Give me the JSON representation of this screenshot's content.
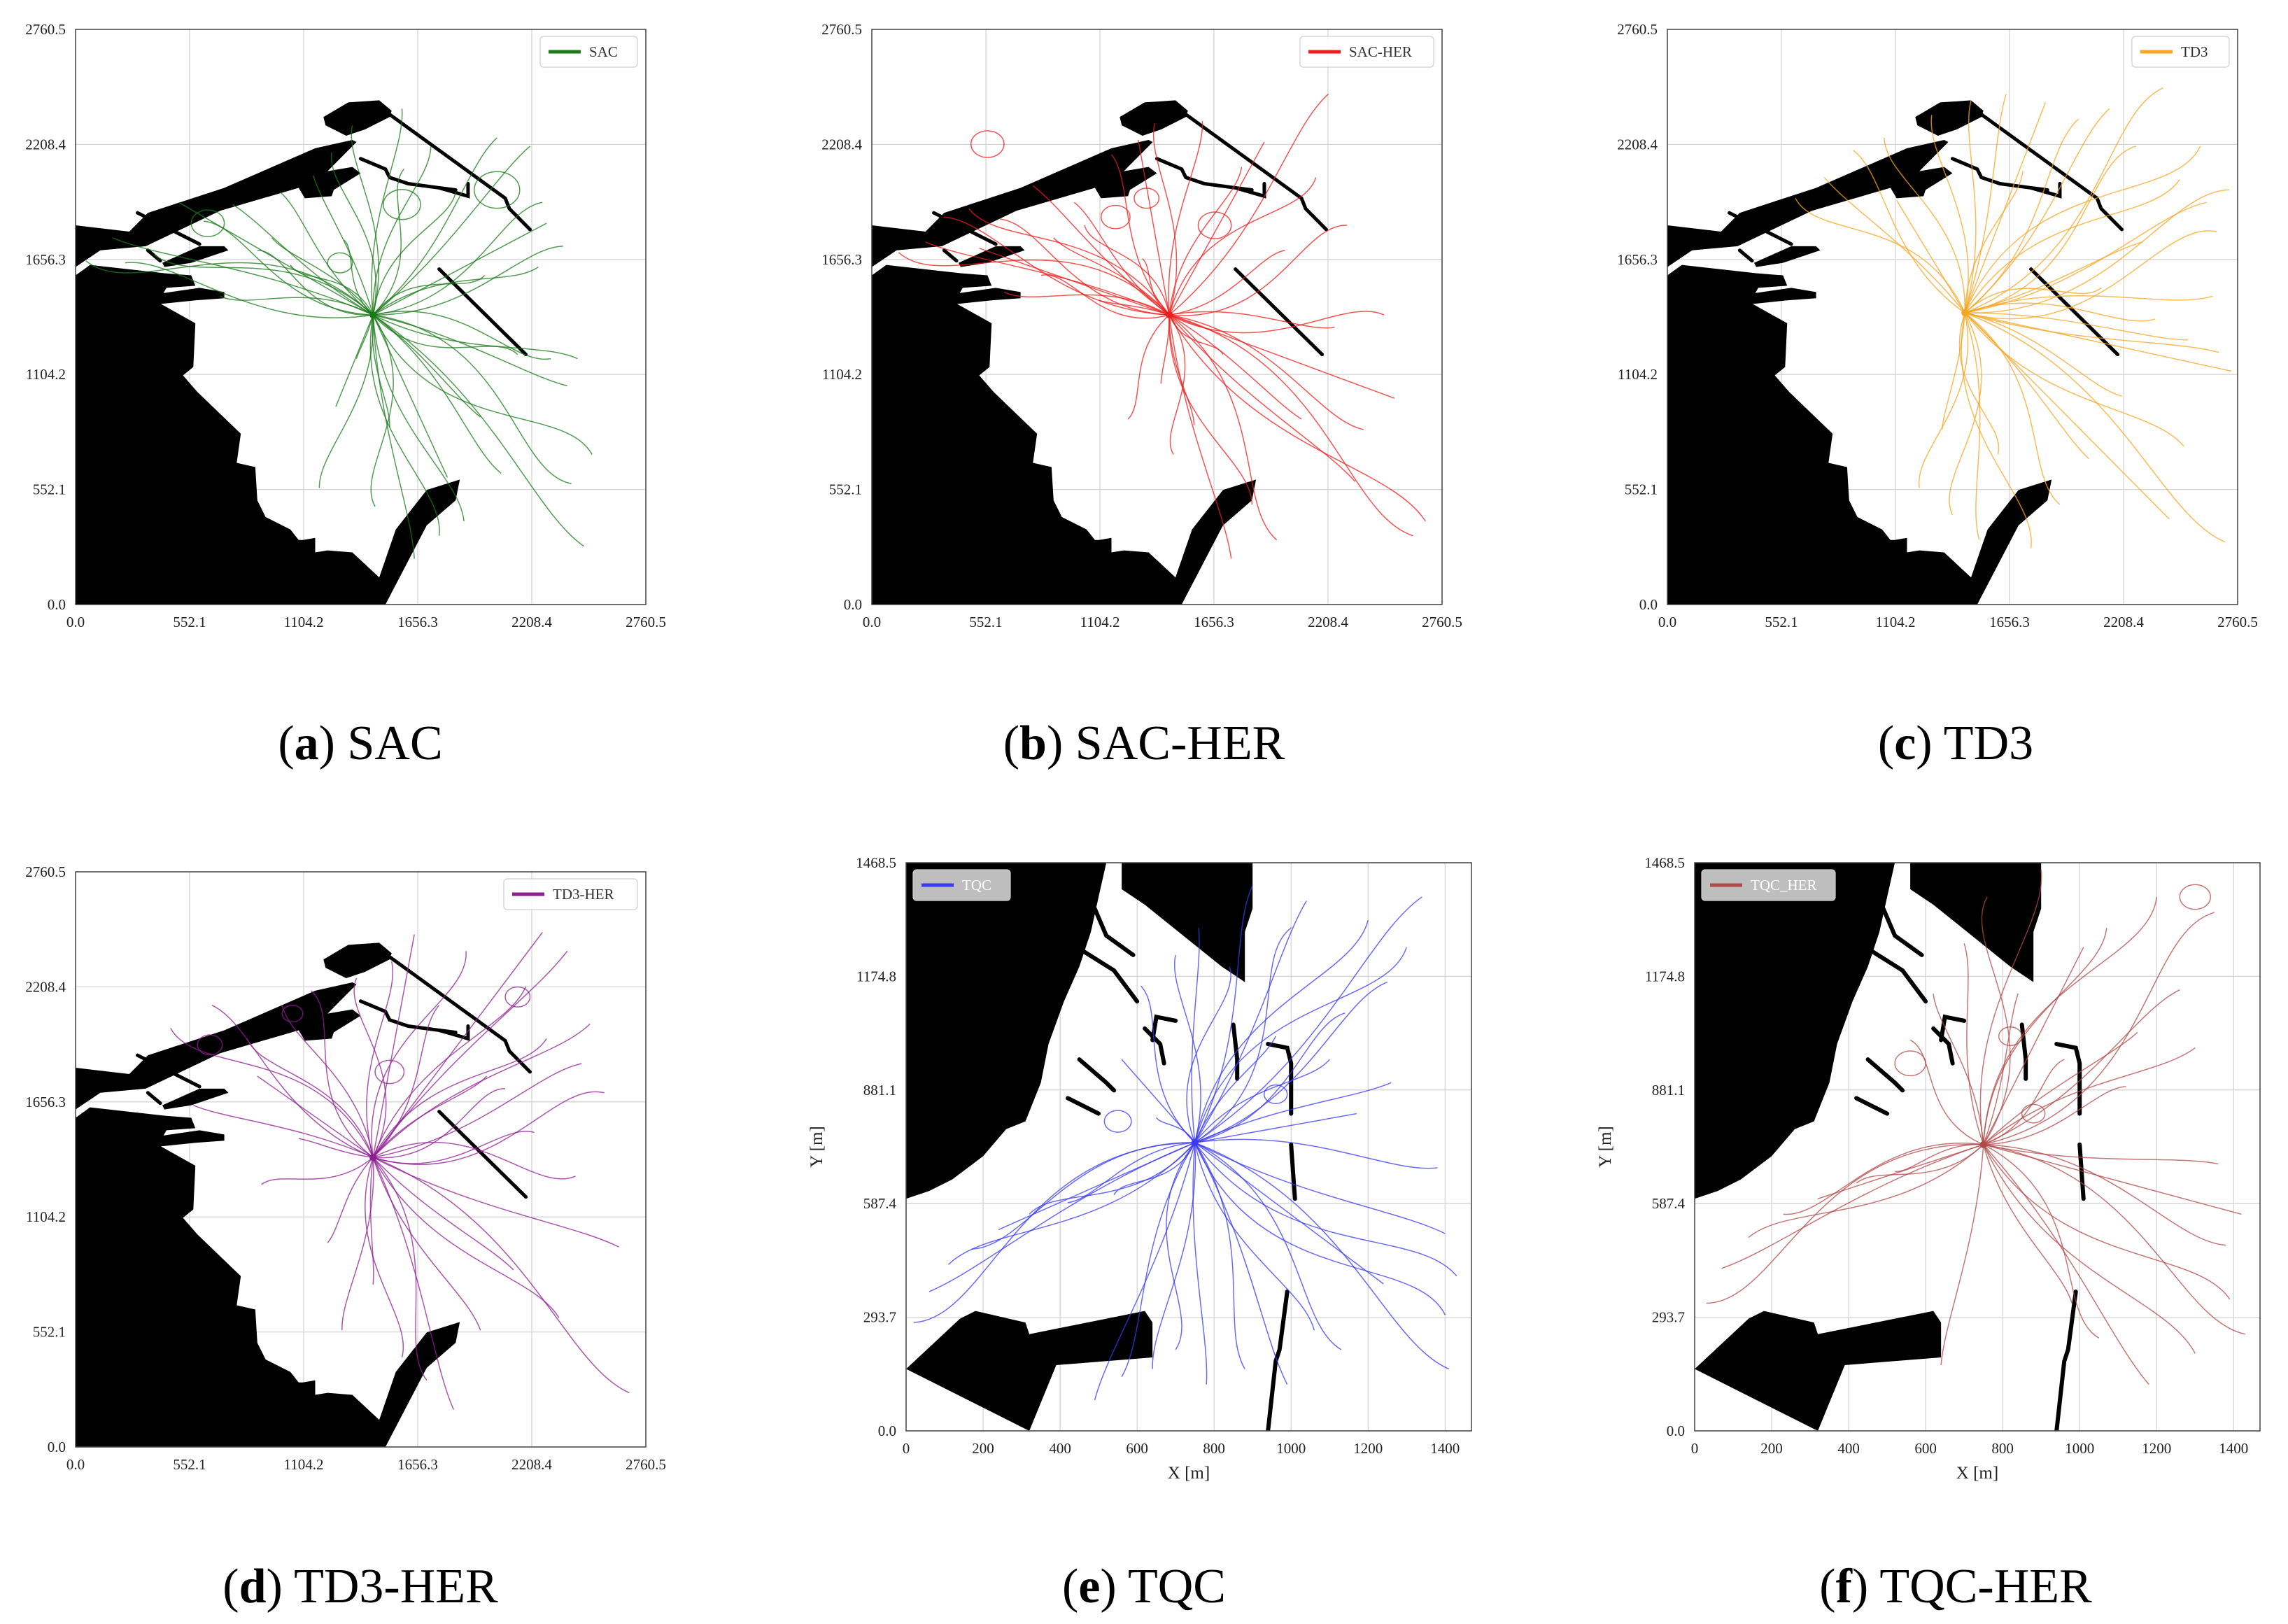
{
  "chart_data": [
    {
      "type": "line",
      "panel_label": "a",
      "caption": "SAC",
      "legend": "SAC",
      "legend_placement": "top-right",
      "legend_style": "light",
      "color": "#1a7a1a",
      "map": "A",
      "xlim": [
        0,
        2760.5
      ],
      "ylim": [
        0,
        2760.5
      ],
      "xticks": [
        0.0,
        552.1,
        1104.2,
        1656.3,
        2208.4,
        2760.5
      ],
      "yticks": [
        0.0,
        552.1,
        1104.2,
        1656.3,
        2208.4,
        2760.5
      ],
      "xlabel": "",
      "ylabel": "",
      "grid": true,
      "origin": [
        1440,
        1390
      ],
      "endpoints": [
        [
          50,
          1650
        ],
        [
          180,
          1760
        ],
        [
          240,
          1640
        ],
        [
          380,
          1680
        ],
        [
          500,
          1930
        ],
        [
          620,
          1840
        ],
        [
          700,
          1480
        ],
        [
          760,
          1920
        ],
        [
          880,
          1700
        ],
        [
          950,
          1760
        ],
        [
          990,
          1980
        ],
        [
          1040,
          1630
        ],
        [
          1150,
          2060
        ],
        [
          1180,
          560
        ],
        [
          1240,
          2170
        ],
        [
          1260,
          950
        ],
        [
          1300,
          1750
        ],
        [
          1340,
          2300
        ],
        [
          1360,
          1180
        ],
        [
          1450,
          470
        ],
        [
          1520,
          850
        ],
        [
          1580,
          2380
        ],
        [
          1590,
          2090
        ],
        [
          1640,
          220
        ],
        [
          1720,
          2200
        ],
        [
          1760,
          330
        ],
        [
          1800,
          610
        ],
        [
          1840,
          1980
        ],
        [
          1880,
          400
        ],
        [
          1960,
          900
        ],
        [
          1980,
          1580
        ],
        [
          2040,
          2240
        ],
        [
          2060,
          630
        ],
        [
          2140,
          1200
        ],
        [
          2200,
          2200
        ],
        [
          2240,
          1620
        ],
        [
          2260,
          1930
        ],
        [
          2280,
          1830
        ],
        [
          2300,
          1180
        ],
        [
          2360,
          1720
        ],
        [
          2380,
          1050
        ],
        [
          2400,
          580
        ],
        [
          2430,
          1180
        ],
        [
          2460,
          280
        ],
        [
          2500,
          720
        ]
      ],
      "loops": [
        [
          1580,
          1920,
          90
        ],
        [
          2040,
          1990,
          110
        ],
        [
          640,
          1830,
          80
        ],
        [
          1280,
          1640,
          60
        ]
      ]
    },
    {
      "type": "line",
      "panel_label": "b",
      "caption": "SAC-HER",
      "legend": "SAC-HER",
      "legend_placement": "top-right",
      "legend_style": "light",
      "color": "#ee1c1c",
      "map": "A",
      "xlim": [
        0,
        2760.5
      ],
      "ylim": [
        0,
        2760.5
      ],
      "xticks": [
        0.0,
        552.1,
        1104.2,
        1656.3,
        2208.4,
        2760.5
      ],
      "yticks": [
        0.0,
        552.1,
        1104.2,
        1656.3,
        2208.4,
        2760.5
      ],
      "xlabel": "",
      "ylabel": "",
      "grid": true,
      "origin": [
        1440,
        1390
      ],
      "endpoints": [
        [
          130,
          1690
        ],
        [
          260,
          1740
        ],
        [
          350,
          1860
        ],
        [
          470,
          1900
        ],
        [
          520,
          1710
        ],
        [
          620,
          1850
        ],
        [
          640,
          1500
        ],
        [
          780,
          2010
        ],
        [
          820,
          1580
        ],
        [
          880,
          1760
        ],
        [
          980,
          1930
        ],
        [
          1030,
          1820
        ],
        [
          1100,
          1460
        ],
        [
          1160,
          2160
        ],
        [
          1240,
          890
        ],
        [
          1290,
          2230
        ],
        [
          1310,
          1660
        ],
        [
          1370,
          2310
        ],
        [
          1400,
          1060
        ],
        [
          1460,
          720
        ],
        [
          1560,
          860
        ],
        [
          1600,
          2320
        ],
        [
          1700,
          1200
        ],
        [
          1740,
          220
        ],
        [
          1790,
          2100
        ],
        [
          1840,
          480
        ],
        [
          1900,
          2220
        ],
        [
          1960,
          310
        ],
        [
          2000,
          1700
        ],
        [
          2080,
          890
        ],
        [
          2150,
          2050
        ],
        [
          2210,
          2450
        ],
        [
          2240,
          1330
        ],
        [
          2300,
          1820
        ],
        [
          2340,
          590
        ],
        [
          2380,
          840
        ],
        [
          2480,
          1390
        ],
        [
          2530,
          990
        ],
        [
          2620,
          330
        ],
        [
          2680,
          400
        ]
      ],
      "loops": [
        [
          1180,
          1860,
          70
        ],
        [
          1330,
          1950,
          60
        ],
        [
          560,
          2210,
          80
        ],
        [
          1660,
          1820,
          80
        ]
      ]
    },
    {
      "type": "line",
      "panel_label": "c",
      "caption": "TD3",
      "legend": "TD3",
      "legend_placement": "top-right",
      "legend_style": "light",
      "color": "#f5a623",
      "map": "A",
      "xlim": [
        0,
        2760.5
      ],
      "ylim": [
        0,
        2760.5
      ],
      "xticks": [
        0.0,
        552.1,
        1104.2,
        1656.3,
        2208.4,
        2760.5
      ],
      "yticks": [
        0.0,
        552.1,
        1104.2,
        1656.3,
        2208.4,
        2760.5
      ],
      "xlabel": "",
      "ylabel": "",
      "grid": true,
      "origin": [
        1440,
        1400
      ],
      "endpoints": [
        [
          620,
          1950
        ],
        [
          760,
          2050
        ],
        [
          900,
          2180
        ],
        [
          1050,
          2240
        ],
        [
          1110,
          1940
        ],
        [
          1220,
          560
        ],
        [
          1280,
          2350
        ],
        [
          1330,
          840
        ],
        [
          1380,
          430
        ],
        [
          1470,
          2420
        ],
        [
          1510,
          310
        ],
        [
          1600,
          720
        ],
        [
          1640,
          2450
        ],
        [
          1720,
          2080
        ],
        [
          1760,
          270
        ],
        [
          1830,
          2410
        ],
        [
          1900,
          480
        ],
        [
          1990,
          2330
        ],
        [
          2040,
          700
        ],
        [
          2100,
          1520
        ],
        [
          2140,
          2380
        ],
        [
          2200,
          1000
        ],
        [
          2270,
          2200
        ],
        [
          2300,
          1740
        ],
        [
          2360,
          1370
        ],
        [
          2400,
          2480
        ],
        [
          2430,
          410
        ],
        [
          2480,
          2040
        ],
        [
          2500,
          760
        ],
        [
          2520,
          1270
        ],
        [
          2580,
          2200
        ],
        [
          2610,
          1930
        ],
        [
          2640,
          1480
        ],
        [
          2660,
          1790
        ],
        [
          2670,
          1210
        ],
        [
          2700,
          300
        ],
        [
          2720,
          1990
        ],
        [
          2730,
          1120
        ]
      ],
      "loops": []
    },
    {
      "type": "line",
      "panel_label": "d",
      "caption": "TD3-HER",
      "legend": "TD3-HER",
      "legend_placement": "top-right",
      "legend_style": "light",
      "color": "#8e1f91",
      "map": "A",
      "xlim": [
        0,
        2760.5
      ],
      "ylim": [
        0,
        2760.5
      ],
      "xticks": [
        0.0,
        552.1,
        1104.2,
        1656.3,
        2208.4,
        2760.5
      ],
      "yticks": [
        0.0,
        552.1,
        1104.2,
        1656.3,
        2208.4,
        2760.5
      ],
      "xlabel": "",
      "ylabel": "",
      "grid": true,
      "origin": [
        1440,
        1390
      ],
      "endpoints": [
        [
          460,
          2010
        ],
        [
          570,
          1640
        ],
        [
          660,
          2120
        ],
        [
          830,
          1960
        ],
        [
          880,
          1780
        ],
        [
          900,
          1260
        ],
        [
          1000,
          2120
        ],
        [
          1080,
          1480
        ],
        [
          1140,
          2190
        ],
        [
          1220,
          980
        ],
        [
          1290,
          560
        ],
        [
          1360,
          2250
        ],
        [
          1440,
          780
        ],
        [
          1530,
          2330
        ],
        [
          1580,
          430
        ],
        [
          1640,
          2460
        ],
        [
          1700,
          320
        ],
        [
          1760,
          2120
        ],
        [
          1830,
          180
        ],
        [
          1890,
          2380
        ],
        [
          1960,
          560
        ],
        [
          1990,
          1780
        ],
        [
          2080,
          1720
        ],
        [
          2120,
          850
        ],
        [
          2180,
          2210
        ],
        [
          2220,
          1510
        ],
        [
          2260,
          2470
        ],
        [
          2280,
          1960
        ],
        [
          2340,
          620
        ],
        [
          2380,
          2380
        ],
        [
          2420,
          1300
        ],
        [
          2450,
          1840
        ],
        [
          2490,
          2030
        ],
        [
          2560,
          1700
        ],
        [
          2630,
          960
        ],
        [
          2680,
          260
        ]
      ],
      "loops": [
        [
          2140,
          2160,
          60
        ],
        [
          650,
          1930,
          60
        ],
        [
          1520,
          1800,
          70
        ],
        [
          1050,
          2080,
          50
        ]
      ]
    },
    {
      "type": "line",
      "panel_label": "e",
      "caption": "TQC",
      "legend": "TQC",
      "legend_placement": "top-left",
      "legend_style": "dark",
      "color": "#3a3af0",
      "map": "B",
      "xlim": [
        0,
        1468.5
      ],
      "ylim": [
        0,
        1468.5
      ],
      "xticks": [
        0,
        200,
        400,
        600,
        800,
        1000,
        1200,
        1400
      ],
      "yticks": [
        0.0,
        293.7,
        587.4,
        881.1,
        1174.8,
        1468.5
      ],
      "ytick_labels": [
        "0.0",
        "293.7",
        "587.4",
        "881.1",
        "1174.8",
        "1468.5"
      ],
      "xlabel": "X [m]",
      "ylabel": "Y [m]",
      "grid": true,
      "origin": [
        750,
        745
      ],
      "endpoints": [
        [
          20,
          280
        ],
        [
          60,
          360
        ],
        [
          110,
          430
        ],
        [
          170,
          470
        ],
        [
          240,
          520
        ],
        [
          320,
          560
        ],
        [
          420,
          590
        ],
        [
          490,
          80
        ],
        [
          540,
          610
        ],
        [
          560,
          140
        ],
        [
          640,
          160
        ],
        [
          700,
          210
        ],
        [
          780,
          120
        ],
        [
          880,
          160
        ],
        [
          650,
          810
        ],
        [
          560,
          960
        ],
        [
          610,
          1150
        ],
        [
          700,
          1230
        ],
        [
          760,
          1300
        ],
        [
          840,
          1200
        ],
        [
          900,
          1410
        ],
        [
          960,
          1020
        ],
        [
          1000,
          1300
        ],
        [
          1040,
          1370
        ],
        [
          1100,
          960
        ],
        [
          1140,
          1080
        ],
        [
          1170,
          820
        ],
        [
          1200,
          1320
        ],
        [
          1250,
          1160
        ],
        [
          1260,
          900
        ],
        [
          1300,
          1250
        ],
        [
          1340,
          1380
        ],
        [
          1380,
          680
        ],
        [
          1400,
          300
        ],
        [
          1400,
          510
        ],
        [
          1410,
          160
        ],
        [
          1430,
          400
        ],
        [
          1240,
          380
        ],
        [
          1130,
          210
        ],
        [
          1060,
          260
        ],
        [
          990,
          120
        ]
      ],
      "loops": [
        [
          550,
          800,
          35
        ],
        [
          960,
          870,
          30
        ]
      ]
    },
    {
      "type": "line",
      "panel_label": "f",
      "caption": "TQC-HER",
      "legend": "TQC_HER",
      "legend_placement": "top-left",
      "legend_style": "dark",
      "color": "#b04a4a",
      "map": "B",
      "xlim": [
        0,
        1468.5
      ],
      "ylim": [
        0,
        1468.5
      ],
      "xticks": [
        0,
        200,
        400,
        600,
        800,
        1000,
        1200,
        1400
      ],
      "yticks": [
        0.0,
        293.7,
        587.4,
        881.1,
        1174.8,
        1468.5
      ],
      "ytick_labels": [
        "0.0",
        "293.7",
        "587.4",
        "881.1",
        "1174.8",
        "1468.5"
      ],
      "xlabel": "X [m]",
      "ylabel": "Y [m]",
      "grid": true,
      "origin": [
        750,
        740
      ],
      "endpoints": [
        [
          30,
          330
        ],
        [
          70,
          420
        ],
        [
          140,
          500
        ],
        [
          230,
          560
        ],
        [
          320,
          600
        ],
        [
          420,
          640
        ],
        [
          520,
          670
        ],
        [
          640,
          170
        ],
        [
          560,
          1010
        ],
        [
          620,
          1130
        ],
        [
          700,
          1260
        ],
        [
          760,
          1380
        ],
        [
          840,
          1130
        ],
        [
          900,
          1450
        ],
        [
          960,
          960
        ],
        [
          1010,
          1250
        ],
        [
          1070,
          1300
        ],
        [
          1120,
          890
        ],
        [
          1150,
          1030
        ],
        [
          1200,
          1380
        ],
        [
          1260,
          1140
        ],
        [
          1300,
          990
        ],
        [
          1350,
          1340
        ],
        [
          1360,
          690
        ],
        [
          1380,
          480
        ],
        [
          1390,
          340
        ],
        [
          1420,
          560
        ],
        [
          1430,
          250
        ],
        [
          1300,
          200
        ],
        [
          1180,
          120
        ],
        [
          1050,
          240
        ],
        [
          980,
          330
        ]
      ],
      "loops": [
        [
          1300,
          1380,
          40
        ],
        [
          560,
          950,
          40
        ],
        [
          820,
          1020,
          30
        ],
        [
          880,
          820,
          30
        ]
      ]
    }
  ]
}
